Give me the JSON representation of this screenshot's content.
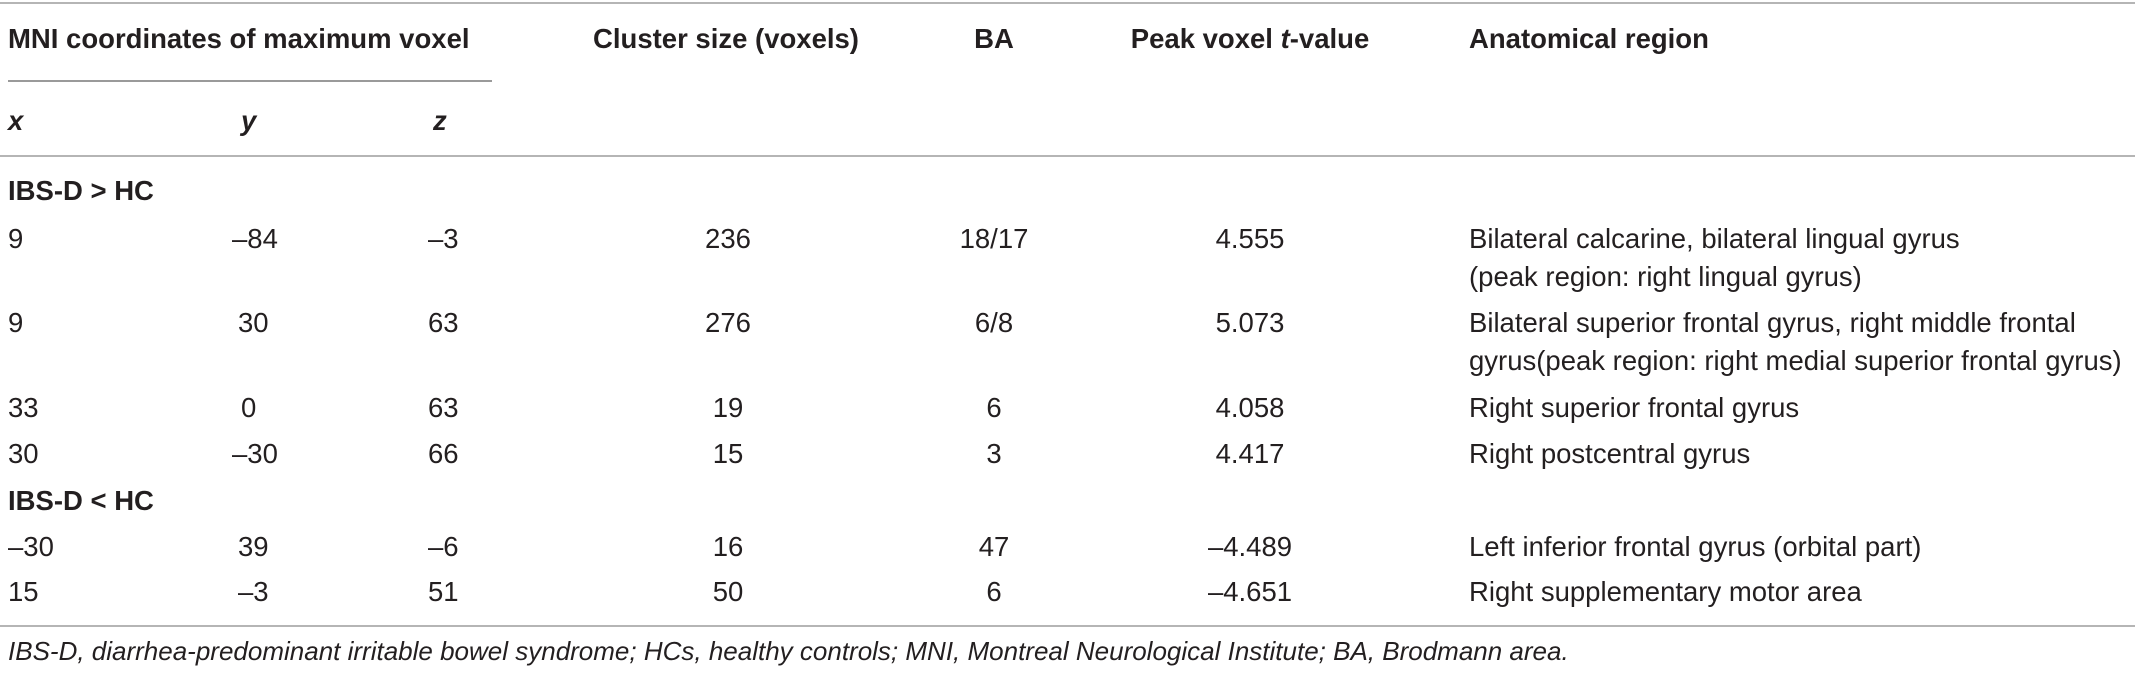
{
  "header": {
    "mni": "MNI coordinates of maximum voxel",
    "cluster": "Cluster size (voxels)",
    "ba": "BA",
    "peak_prefix": "Peak voxel ",
    "peak_t": "t",
    "peak_suffix": "-value",
    "region": "Anatomical region",
    "x": "x",
    "y": "y",
    "z": "z"
  },
  "groups": [
    {
      "label": "IBS-D > HC",
      "rows": [
        {
          "x": "9",
          "y": "–84",
          "z": "–3",
          "cluster": "236",
          "ba": "18/17",
          "t": "4.555",
          "region": "Bilateral calcarine, bilateral lingual gyrus",
          "region2": "(peak region: right lingual gyrus)"
        },
        {
          "x": "9",
          "y": "30",
          "z": "63",
          "cluster": "276",
          "ba": "6/8",
          "t": "5.073",
          "region": "Bilateral superior frontal gyrus, right middle frontal",
          "region2": "gyrus(peak region: right medial superior frontal gyrus)"
        },
        {
          "x": "33",
          "y": "0",
          "z": "63",
          "cluster": "19",
          "ba": "6",
          "t": "4.058",
          "region": "Right superior frontal gyrus"
        },
        {
          "x": "30",
          "y": "–30",
          "z": "66",
          "cluster": "15",
          "ba": "3",
          "t": "4.417",
          "region": "Right postcentral gyrus"
        }
      ]
    },
    {
      "label": "IBS-D < HC",
      "rows": [
        {
          "x": "–30",
          "y": "39",
          "z": "–6",
          "cluster": "16",
          "ba": "47",
          "t": "–4.489",
          "region": "Left inferior frontal gyrus (orbital part)"
        },
        {
          "x": "15",
          "y": "–3",
          "z": "51",
          "cluster": "50",
          "ba": "6",
          "t": "–4.651",
          "region": "Right supplementary motor area"
        }
      ]
    }
  ],
  "footnote": "IBS-D, diarrhea-predominant irritable bowel syndrome; HCs, healthy controls; MNI, Montreal Neurological Institute; BA, Brodmann area."
}
